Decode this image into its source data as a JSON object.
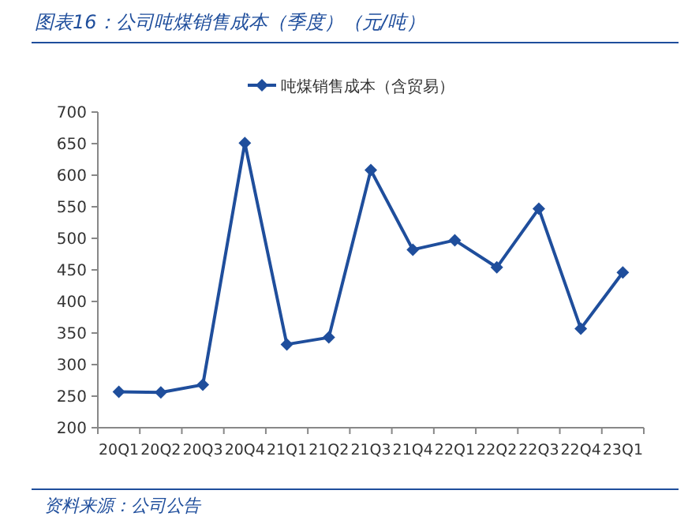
{
  "chart_data": {
    "type": "line",
    "title": "图表16：公司吨煤销售成本（季度）（元/吨）",
    "annotations": [
      "资料来源：公司公告"
    ],
    "categories": [
      "20Q1",
      "20Q2",
      "20Q3",
      "20Q4",
      "21Q1",
      "21Q2",
      "21Q3",
      "21Q4",
      "22Q1",
      "22Q2",
      "22Q3",
      "22Q4",
      "23Q1"
    ],
    "series": [
      {
        "name": "吨煤销售成本（含贸易）",
        "color": "#1f4e9c",
        "values": [
          257,
          256,
          268,
          651,
          332,
          343,
          608,
          482,
          497,
          454,
          547,
          357,
          446
        ]
      }
    ],
    "ylim": [
      200,
      700
    ],
    "yticks": [
      200,
      250,
      300,
      350,
      400,
      450,
      500,
      550,
      600,
      650,
      700
    ],
    "grid": false,
    "legend": "top",
    "marker": "diamond",
    "line_style": "solid"
  }
}
